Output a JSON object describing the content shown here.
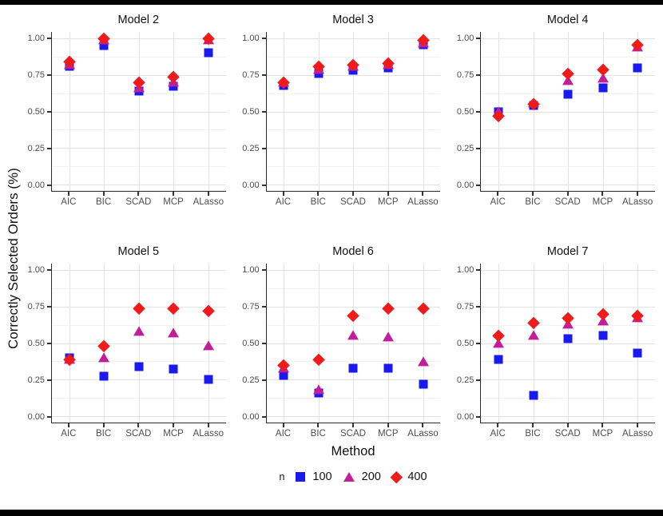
{
  "figure": {
    "y_axis_label": "Correctly Selected Orders (%)",
    "x_axis_label": "Method",
    "legend": {
      "title": "n",
      "entries": [
        {
          "label": "100",
          "shape": "square",
          "color": "#1A1AEF"
        },
        {
          "label": "200",
          "shape": "triangle",
          "color": "#C21E9B"
        },
        {
          "label": "400",
          "shape": "diamond",
          "color": "#EF1A1A"
        }
      ]
    },
    "colors": {
      "series_blue": "#1A1AEF",
      "series_magenta": "#C21E9B",
      "series_red": "#EF1A1A",
      "axis_text": "#4D4D4D",
      "axis_line": "#2b2b2b",
      "grid_major": "#E3E3E3",
      "grid_minor": "#F2F2F2",
      "frame_bar": "#000000"
    }
  },
  "chart_data": {
    "type": "scatter",
    "title": "",
    "xlabel": "Method",
    "ylabel": "Correctly Selected Orders (%)",
    "categories": [
      "AIC",
      "BIC",
      "SCAD",
      "MCP",
      "ALasso"
    ],
    "ylim": [
      -0.045,
      1.045
    ],
    "y_major_ticks": [
      1.0,
      0.75,
      0.5,
      0.25,
      0.0
    ],
    "y_tick_labels": [
      "1.00",
      "0.75",
      "0.50",
      "0.25",
      "0.00"
    ],
    "y_minor_ticks": [
      0.875,
      0.625,
      0.375,
      0.125
    ],
    "grid": "horizontal major+minor, vertical major at categories",
    "legend_position": "bottom",
    "legend_title": "n",
    "series_meta": [
      {
        "name": "100",
        "shape": "square",
        "color": "#1A1AEF"
      },
      {
        "name": "200",
        "shape": "triangle",
        "color": "#C21E9B"
      },
      {
        "name": "400",
        "shape": "diamond",
        "color": "#EF1A1A"
      }
    ],
    "facets": [
      {
        "title": "Model 2",
        "series": [
          {
            "name": "100",
            "values": [
              0.81,
              0.95,
              0.64,
              0.67,
              0.9
            ]
          },
          {
            "name": "200",
            "values": [
              0.82,
              0.99,
              0.66,
              0.7,
              0.99
            ]
          },
          {
            "name": "400",
            "values": [
              0.84,
              1.0,
              0.7,
              0.74,
              1.0
            ]
          }
        ]
      },
      {
        "title": "Model 3",
        "series": [
          {
            "name": "100",
            "values": [
              0.68,
              0.76,
              0.78,
              0.8,
              0.96
            ]
          },
          {
            "name": "200",
            "values": [
              0.7,
              0.79,
              0.81,
              0.82,
              0.97
            ]
          },
          {
            "name": "400",
            "values": [
              0.7,
              0.81,
              0.82,
              0.83,
              0.99
            ]
          }
        ]
      },
      {
        "title": "Model 4",
        "series": [
          {
            "name": "100",
            "values": [
              0.5,
              0.54,
              0.62,
              0.66,
              0.8
            ]
          },
          {
            "name": "200",
            "values": [
              0.5,
              0.56,
              0.71,
              0.73,
              0.94
            ]
          },
          {
            "name": "400",
            "values": [
              0.47,
              0.55,
              0.76,
              0.79,
              0.96
            ]
          }
        ]
      },
      {
        "title": "Model 5",
        "series": [
          {
            "name": "100",
            "values": [
              0.4,
              0.27,
              0.34,
              0.32,
              0.25
            ]
          },
          {
            "name": "200",
            "values": [
              0.39,
              0.4,
              0.58,
              0.57,
              0.48
            ]
          },
          {
            "name": "400",
            "values": [
              0.39,
              0.48,
              0.74,
              0.74,
              0.72
            ]
          }
        ]
      },
      {
        "title": "Model 6",
        "series": [
          {
            "name": "100",
            "values": [
              0.28,
              0.16,
              0.33,
              0.33,
              0.22
            ]
          },
          {
            "name": "200",
            "values": [
              0.33,
              0.18,
              0.55,
              0.54,
              0.37
            ]
          },
          {
            "name": "400",
            "values": [
              0.35,
              0.39,
              0.69,
              0.74,
              0.74
            ]
          }
        ]
      },
      {
        "title": "Model 7",
        "series": [
          {
            "name": "100",
            "values": [
              0.39,
              0.14,
              0.53,
              0.55,
              0.43
            ]
          },
          {
            "name": "200",
            "values": [
              0.5,
              0.55,
              0.63,
              0.65,
              0.67
            ]
          },
          {
            "name": "400",
            "values": [
              0.55,
              0.64,
              0.67,
              0.7,
              0.69
            ]
          }
        ]
      }
    ]
  }
}
